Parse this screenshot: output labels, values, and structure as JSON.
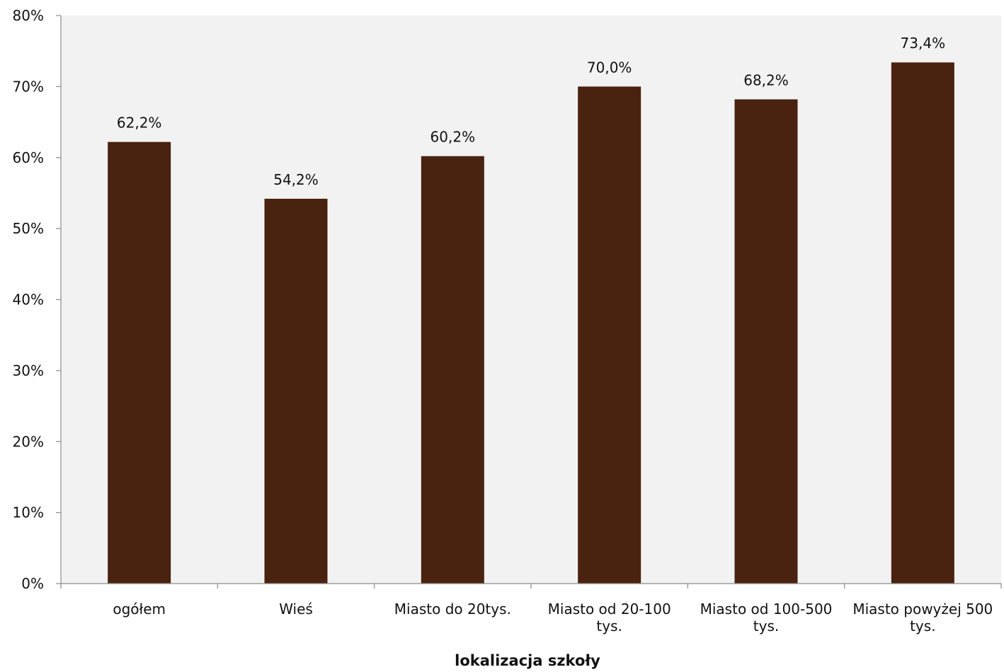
{
  "chart_data": {
    "type": "bar",
    "categories": [
      [
        "ogółem"
      ],
      [
        "Wieś"
      ],
      [
        "Miasto do 20tys."
      ],
      [
        "Miasto od 20-100",
        "tys."
      ],
      [
        "Miasto od 100-500",
        "tys."
      ],
      [
        "Miasto powyżej 500",
        "tys."
      ]
    ],
    "values": [
      62.2,
      54.2,
      60.2,
      70.0,
      68.2,
      73.4
    ],
    "value_labels": [
      "62,2%",
      "54,2%",
      "60,2%",
      "70,0%",
      "68,2%",
      "73,4%"
    ],
    "xlabel": "lokalizacja szkoły",
    "ylabel": "",
    "ylim": [
      0,
      80
    ],
    "yticks": [
      0,
      10,
      20,
      30,
      40,
      50,
      60,
      70,
      80
    ],
    "ytick_labels": [
      "0%",
      "10%",
      "20%",
      "30%",
      "40%",
      "50%",
      "60%",
      "70%",
      "80%"
    ],
    "grid": false,
    "legend": "none",
    "colors": {
      "bar": "#4a2210",
      "plot_background": "#f2f2f2",
      "axis": "#8c8c8c"
    }
  }
}
